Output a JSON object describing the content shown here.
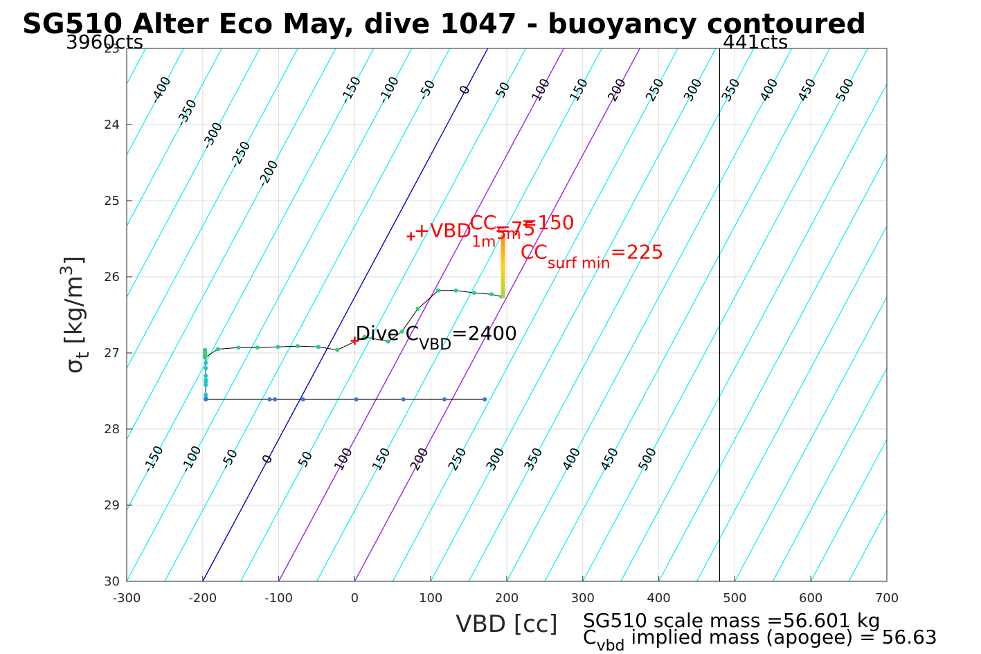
{
  "chart_data": {
    "type": "line",
    "title": "SG510 Alter Eco May, dive 1047 - buoyancy contoured",
    "xlabel": "VBD [cc]",
    "ylabel": {
      "base": "σ",
      "sub": "t",
      "unit": " [kg/m",
      "sup": "3",
      "close": "]"
    },
    "xlim": [
      -300,
      700
    ],
    "ylim": [
      23,
      30
    ],
    "y_reversed": true,
    "grid": true,
    "x_ticks": [
      -300,
      -200,
      -100,
      0,
      100,
      200,
      300,
      400,
      500,
      600,
      700
    ],
    "x_tick_labels": [
      "-300",
      "-200",
      "-100",
      "0",
      "100",
      "200",
      "300",
      "400",
      "500",
      "600",
      "700"
    ],
    "y_ticks": [
      23,
      24,
      25,
      26,
      27,
      28,
      29,
      30
    ],
    "y_tick_labels": [
      "23",
      "24",
      "25",
      "26",
      "27",
      "28",
      "29",
      "30"
    ],
    "counts_left": "3960cts",
    "counts_right": "441cts",
    "counts_line_x": 480,
    "contours": {
      "slope_cc_per_sigma": -100,
      "levels": [
        -450,
        -400,
        -350,
        -300,
        -250,
        -200,
        -150,
        -100,
        -50,
        0,
        50,
        100,
        150,
        200,
        250,
        300,
        350,
        400,
        450,
        500,
        550,
        600,
        650,
        700,
        750,
        800,
        850,
        900,
        950
      ],
      "zero_line_color": "#0000cc",
      "highlight_levels": [
        100,
        200
      ],
      "highlight_color": "#a020f0",
      "default_color": "#00f0f0",
      "upper_labels": {
        "sigma": 23.55,
        "labels": [
          "-400",
          "-350",
          "-300",
          "-250",
          "-200",
          "-150",
          "-100",
          "-50",
          "0",
          "50",
          "100",
          "150",
          "200",
          "250",
          "300",
          "350",
          "400",
          "450",
          "500"
        ],
        "levels": [
          -400,
          -350,
          -300,
          -250,
          -200,
          -150,
          -100,
          -50,
          0,
          50,
          100,
          150,
          200,
          250,
          300,
          350,
          400,
          450,
          500
        ],
        "sigma_shift": [
          0,
          0.15,
          0.3,
          0.45,
          0.6,
          -0.55,
          -0.45,
          -0.45,
          -0.45,
          -0.45,
          -0.45,
          -0.45,
          -0.45,
          -0.45,
          -0.45,
          -0.45,
          -0.45,
          -0.45,
          -0.45
        ]
      },
      "lower_labels": {
        "sigma": 28.4,
        "labels": [
          "-150",
          "-100",
          "-50",
          "0",
          "50",
          "100",
          "150",
          "200",
          "250",
          "300",
          "350",
          "400",
          "450",
          "500"
        ],
        "levels": [
          -150,
          -100,
          -50,
          0,
          50,
          100,
          150,
          200,
          250,
          300,
          350,
          400,
          450,
          500
        ]
      }
    },
    "series": [
      {
        "marker_color": "#33cc77",
        "x": [
          -197,
          -197,
          -197,
          -197,
          -197,
          -180,
          -153,
          -128,
          -101,
          -75,
          -48,
          -23,
          13,
          44,
          62,
          83,
          110,
          133,
          157,
          180,
          193
        ],
        "y": [
          26.96,
          26.99,
          27.02,
          27.04,
          27.06,
          26.95,
          26.93,
          26.93,
          26.92,
          26.91,
          26.92,
          26.96,
          26.79,
          26.85,
          26.72,
          26.42,
          26.18,
          26.18,
          26.21,
          26.23,
          26.26
        ]
      },
      {
        "marker_color": "#1ec8c8",
        "x": [
          -196,
          -196,
          -196,
          -196,
          -196,
          -196,
          -196,
          -196,
          -196
        ],
        "y": [
          27.13,
          27.2,
          27.3,
          27.35,
          27.38,
          27.42,
          27.55,
          27.58,
          27.6
        ]
      },
      {
        "marker_color": "#3a6fe0",
        "x": [
          -196,
          -112,
          -105,
          -68,
          2,
          64,
          118,
          171
        ],
        "y": [
          27.61,
          27.61,
          27.61,
          27.61,
          27.61,
          27.61,
          27.61,
          27.61
        ]
      }
    ],
    "surface_bar": {
      "x": 195,
      "y_top": 25.45,
      "y_bottom": 26.28,
      "colors": [
        "#ff8a1a",
        "#ffd21a",
        "#a8d23c"
      ]
    },
    "markers": [
      {
        "label": "dive-cvbd-marker",
        "x": 0,
        "y": 26.84,
        "color": "#ff0000"
      },
      {
        "label": "vbd-1m-marker",
        "x": 74,
        "y": 25.47,
        "color": "#ff0000"
      }
    ],
    "annotations": {
      "vbd_1m": {
        "prefix": "+VBD",
        "sub": "1m",
        "x": 74,
        "y": 25.47
      },
      "cc5m": {
        "base": "CC",
        "sub": "5m",
        "value": "=150",
        "x": 151,
        "y": 25.38
      },
      "cc75": {
        "text": "=75",
        "x": 184,
        "y": 25.42
      },
      "cc_surf_min": {
        "base": "CC",
        "sub": "surf min",
        "value": "=225",
        "x": 218,
        "y": 25.65
      },
      "dive_cvbd": {
        "prefix": "Dive C",
        "sub": "VBD",
        "value": "=2400",
        "x": 1,
        "y": 26.79
      }
    },
    "footnote": {
      "line1": "SG510 scale mass =56.601 kg",
      "line2_base": "C",
      "line2_sub": "vbd",
      "line2_rest": " implied mass (apogee) = 56.63"
    }
  }
}
